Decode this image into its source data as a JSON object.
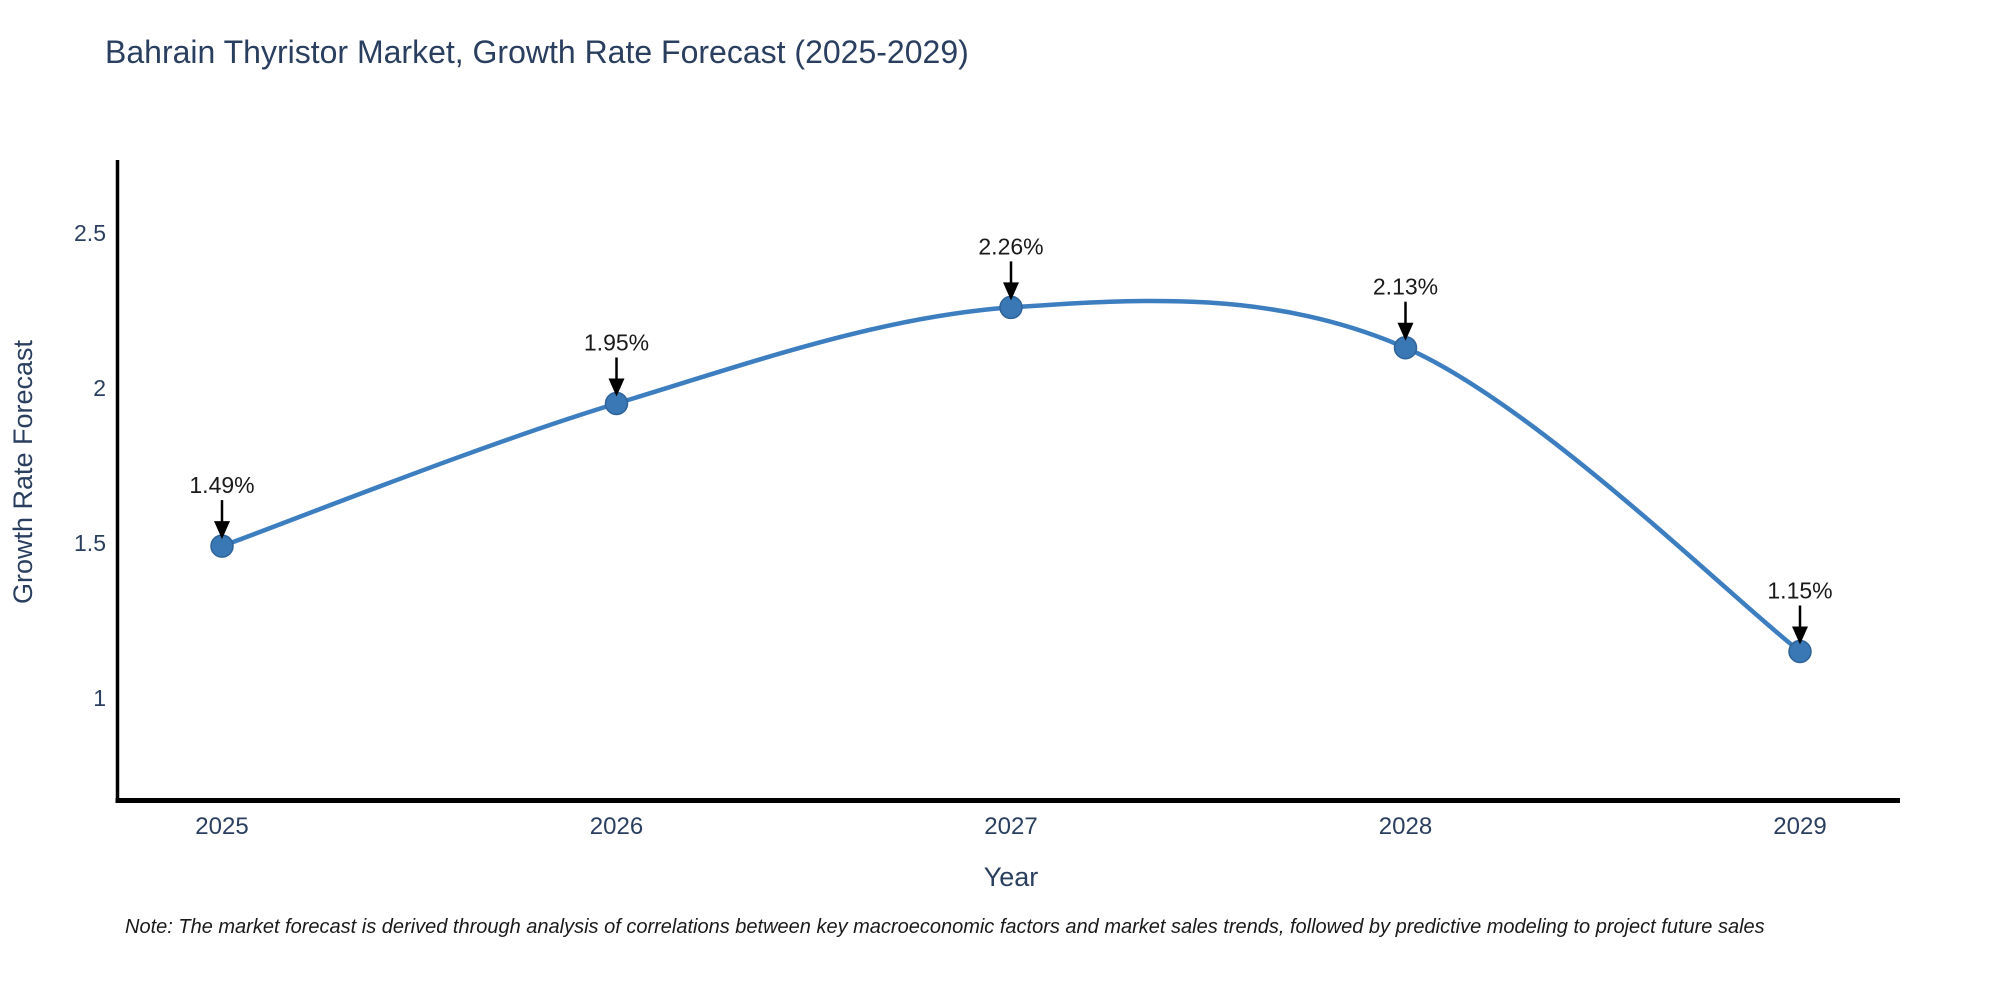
{
  "title": {
    "text": "Bahrain Thyristor Market, Growth Rate Forecast (2025-2029)",
    "color": "#2a3f5f"
  },
  "note": {
    "text": "Note: The market forecast is derived through analysis of correlations between key macroeconomic factors and market sales trends, followed by predictive modeling to project future sales"
  },
  "chart_data": {
    "type": "line",
    "title": "Bahrain Thyristor Market, Growth Rate Forecast (2025-2029)",
    "x": [
      "2025",
      "2026",
      "2027",
      "2028",
      "2029"
    ],
    "series": [
      {
        "name": "Growth Rate Forecast",
        "values": [
          1.49,
          1.95,
          2.26,
          2.13,
          1.15
        ]
      }
    ],
    "point_labels": [
      "1.49%",
      "1.95%",
      "2.26%",
      "2.13%",
      "1.15%"
    ],
    "xlabel": "Year",
    "ylabel": "Growth Rate Forecast",
    "y_ticks": [
      1,
      1.5,
      2,
      2.5
    ],
    "ylim": [
      0.67,
      2.73
    ],
    "line_shape": "spline",
    "grid": false,
    "legend_position": "none",
    "annotations_have_arrows": true,
    "colors": {
      "line": "#3c7ebf",
      "marker": "#3a78b5",
      "marker_edge": "#2e6399",
      "axis": "#000000",
      "tick_label": "#2a3f5f",
      "axis_title": "#2a3f5f",
      "annotation": "#1a1a1a",
      "arrow": "#000000",
      "background": "#ffffff"
    }
  }
}
